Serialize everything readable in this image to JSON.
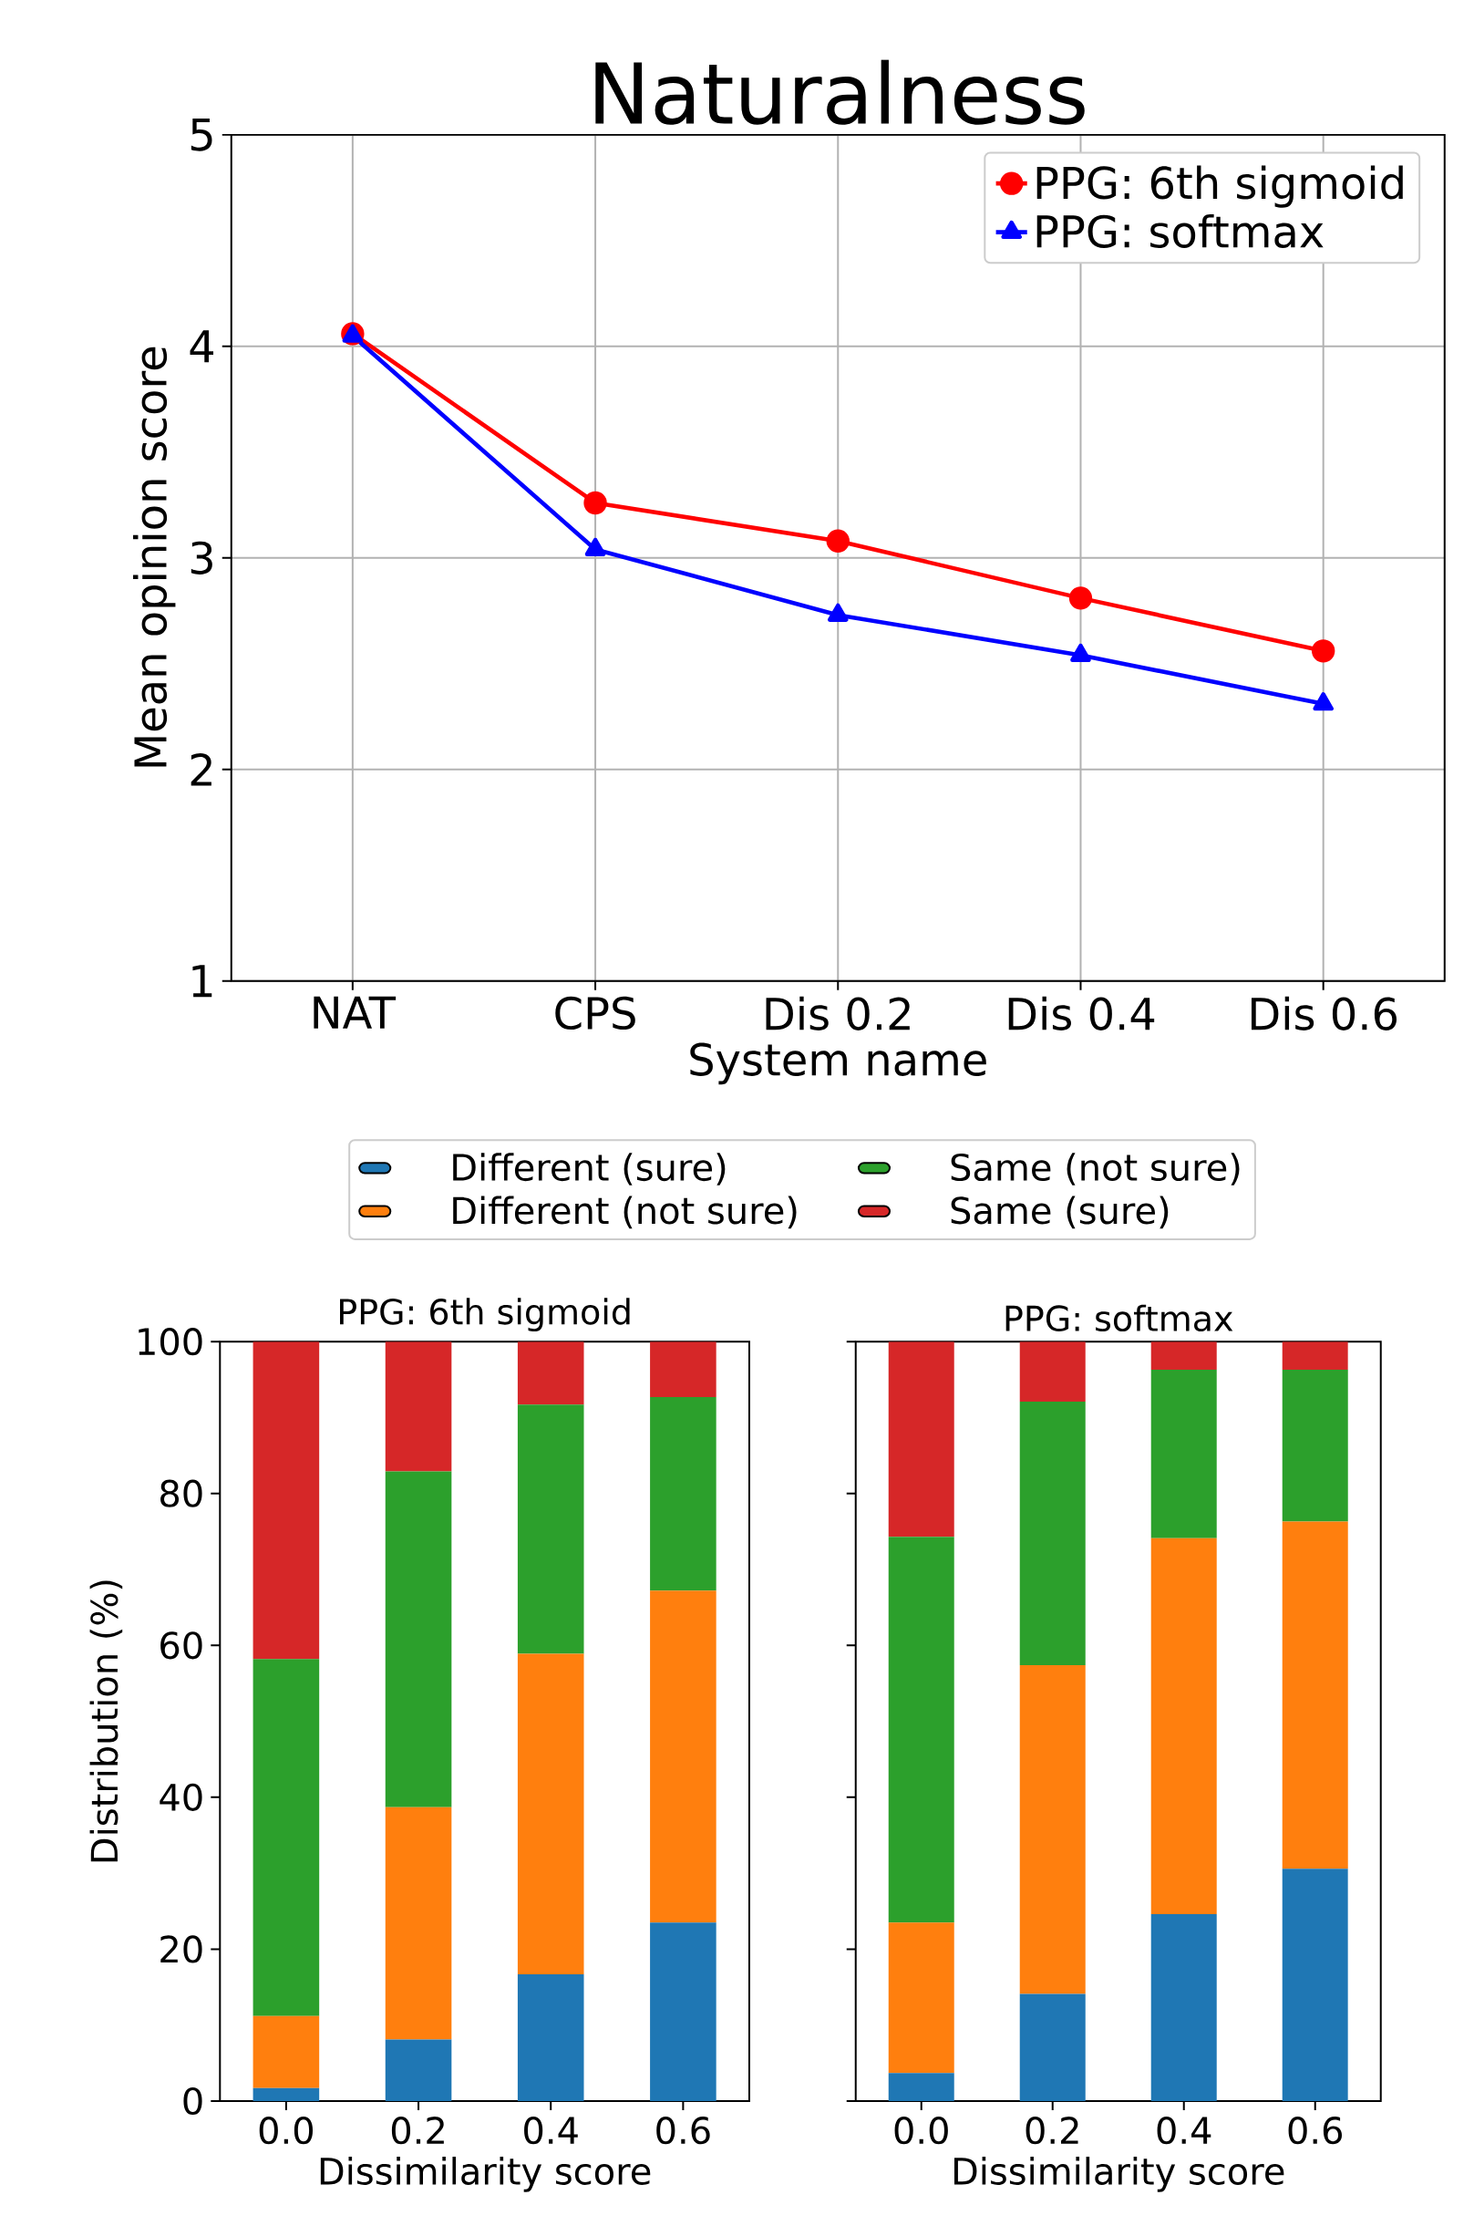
{
  "chart_data": [
    {
      "type": "line",
      "title": "Naturalness",
      "xlabel": "System name",
      "ylabel": "Mean opinion score",
      "categories": [
        "NAT",
        "CPS",
        "Dis 0.2",
        "Dis 0.4",
        "Dis 0.6"
      ],
      "series": [
        {
          "name": "PPG: 6th sigmoid",
          "color": "#ff0000",
          "marker": "circle",
          "values": [
            4.06,
            3.26,
            3.08,
            2.81,
            2.56
          ]
        },
        {
          "name": "PPG: softmax",
          "color": "#0000ff",
          "marker": "triangle",
          "values": [
            4.05,
            3.04,
            2.73,
            2.54,
            2.31
          ]
        }
      ],
      "ylim": [
        1,
        5
      ],
      "yticks": [
        1,
        2,
        3,
        4,
        5
      ],
      "grid": true,
      "legend": "top right"
    },
    {
      "type": "bar",
      "stacked": true,
      "title": "PPG: 6th sigmoid",
      "xlabel": "Dissimilarity score",
      "ylabel": "Distribution (%)",
      "categories": [
        "0.0",
        "0.2",
        "0.4",
        "0.6"
      ],
      "series": [
        {
          "name": "Different (sure)",
          "color": "#1f77b4",
          "values": [
            1.7,
            8.1,
            16.7,
            23.5
          ]
        },
        {
          "name": "Different (not sure)",
          "color": "#ff7f0e",
          "values": [
            9.5,
            30.6,
            42.2,
            43.7
          ]
        },
        {
          "name": "Same (not sure)",
          "color": "#2ca02c",
          "values": [
            47.0,
            44.2,
            32.8,
            25.5
          ]
        },
        {
          "name": "Same (sure)",
          "color": "#d62728",
          "values": [
            41.8,
            17.1,
            8.3,
            7.3
          ]
        }
      ],
      "ylim": [
        0,
        100
      ],
      "yticks": [
        0,
        20,
        40,
        60,
        80,
        100
      ],
      "legend": "top"
    },
    {
      "type": "bar",
      "stacked": true,
      "title": "PPG: softmax",
      "xlabel": "Dissimilarity score",
      "categories": [
        "0.0",
        "0.2",
        "0.4",
        "0.6"
      ],
      "series": [
        {
          "color": "#1f77b4",
          "values": [
            3.7,
            14.1,
            24.6,
            30.6
          ]
        },
        {
          "color": "#ff7f0e",
          "values": [
            19.8,
            43.3,
            49.5,
            45.7
          ]
        },
        {
          "color": "#2ca02c",
          "values": [
            50.8,
            34.7,
            22.2,
            20.0
          ]
        },
        {
          "color": "#d62728",
          "values": [
            25.7,
            7.9,
            3.7,
            3.7
          ]
        }
      ],
      "ylim": [
        0,
        100
      ],
      "yticks": [
        0,
        20,
        40,
        60,
        80,
        100
      ],
      "tick_labels": "x"
    }
  ]
}
